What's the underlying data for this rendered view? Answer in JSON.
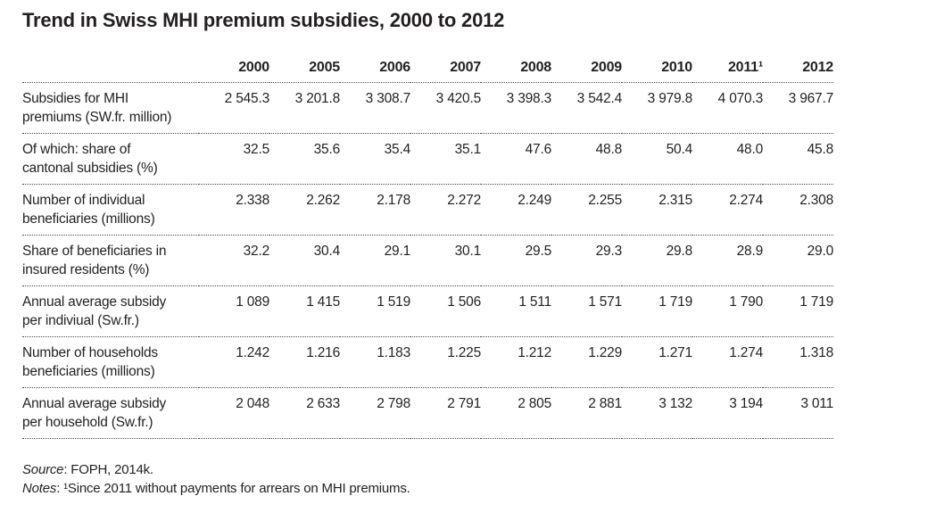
{
  "title": "Trend in Swiss MHI premium subsidies, 2000 to 2012",
  "table": {
    "columns": [
      "2000",
      "2005",
      "2006",
      "2007",
      "2008",
      "2009",
      "2010",
      "2011¹",
      "2012"
    ],
    "rows": [
      {
        "label_lines": [
          "Subsidies for MHI",
          "premiums (SW.fr. million)"
        ],
        "values": [
          "2 545.3",
          "3 201.8",
          "3 308.7",
          "3 420.5",
          "3 398.3",
          "3 542.4",
          "3 979.8",
          "4 070.3",
          "3 967.7"
        ]
      },
      {
        "label_lines": [
          "Of which: share of",
          "cantonal subsidies (%)"
        ],
        "values": [
          "32.5",
          "35.6",
          "35.4",
          "35.1",
          "47.6",
          "48.8",
          "50.4",
          "48.0",
          "45.8"
        ]
      },
      {
        "label_lines": [
          "Number of individual",
          "beneficiaries (millions)"
        ],
        "values": [
          "2.338",
          "2.262",
          "2.178",
          "2.272",
          "2.249",
          "2.255",
          "2.315",
          "2.274",
          "2.308"
        ]
      },
      {
        "label_lines": [
          "Share of beneficiaries in",
          "insured residents (%)"
        ],
        "values": [
          "32.2",
          "30.4",
          "29.1",
          "30.1",
          "29.5",
          "29.3",
          "29.8",
          "28.9",
          "29.0"
        ]
      },
      {
        "label_lines": [
          "Annual average subsidy",
          "per indiviual (Sw.fr.)"
        ],
        "values": [
          "1 089",
          "1 415",
          "1 519",
          "1 506",
          "1 511",
          "1 571",
          "1 719",
          "1 790",
          "1 719"
        ]
      },
      {
        "label_lines": [
          "Number of households",
          "beneficiaries (millions)"
        ],
        "values": [
          "1.242",
          "1.216",
          "1.183",
          "1.225",
          "1.212",
          "1.229",
          "1.271",
          "1.274",
          "1.318"
        ]
      },
      {
        "label_lines": [
          "Annual average subsidy",
          "per household (Sw.fr.)"
        ],
        "values": [
          "2 048",
          "2 633",
          "2 798",
          "2 791",
          "2 805",
          "2 881",
          "3 132",
          "3 194",
          "3 011"
        ]
      }
    ]
  },
  "footer": {
    "source_label": "Source",
    "source_rest": ": FOPH, 2014k.",
    "notes_label": "Notes",
    "notes_rest": ": ¹Since 2011 without payments for arrears on MHI premiums."
  },
  "colors": {
    "text": "#231f20",
    "rule": "#4a4a4a",
    "background": "#ffffff"
  }
}
